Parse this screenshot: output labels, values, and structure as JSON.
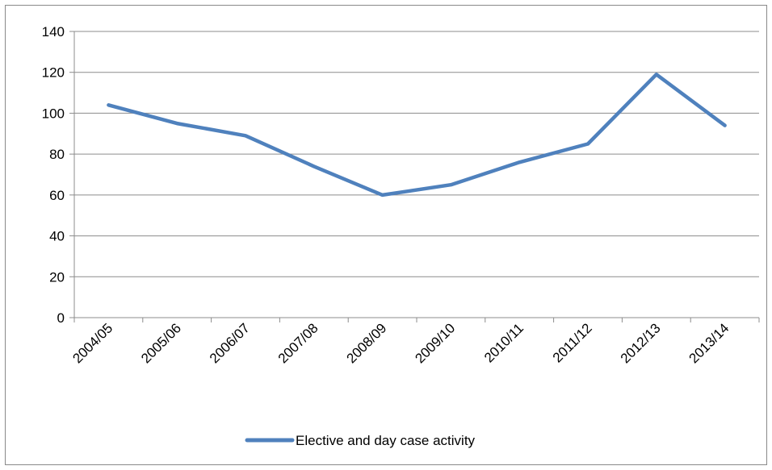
{
  "chart_data": {
    "type": "line",
    "title": "",
    "xlabel": "",
    "ylabel": "",
    "categories": [
      "2004/05",
      "2005/06",
      "2006/07",
      "2007/08",
      "2008/09",
      "2009/10",
      "2010/11",
      "2011/12",
      "2012/13",
      "2013/14"
    ],
    "series": [
      {
        "name": "Elective and day case activity",
        "values": [
          104,
          95,
          89,
          74,
          60,
          65,
          76,
          85,
          119,
          94
        ],
        "color": "#4F81BD"
      }
    ],
    "ylim": [
      0,
      140
    ],
    "yticks": [
      0,
      20,
      40,
      60,
      80,
      100,
      120,
      140
    ],
    "grid": true,
    "legend_position": "bottom"
  }
}
